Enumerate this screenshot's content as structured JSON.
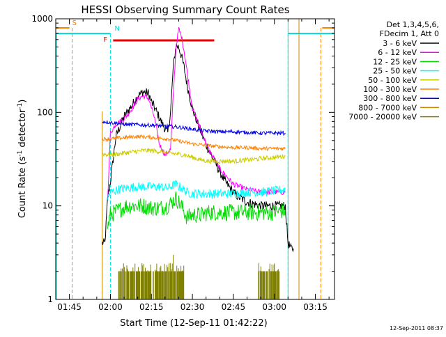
{
  "chart_data": {
    "type": "line",
    "title": "HESSI Observing Summary Count Rates",
    "xlabel": "Start Time (12-Sep-11 01:42:22)",
    "ylabel": "Count Rate (s",
    "ylabel_sup1": "-1",
    "ylabel_mid": " detector",
    "ylabel_sup2": "-1",
    "ylabel_end": ")",
    "yscale": "log",
    "xlim": [
      "01:40",
      "03:22"
    ],
    "ylim": [
      1,
      1000
    ],
    "x_ticks": [
      "01:45",
      "02:00",
      "02:15",
      "02:30",
      "02:45",
      "03:00",
      "03:15"
    ],
    "y_ticks": [
      "1",
      "10",
      "100",
      "1000"
    ],
    "footer_timestamp": "12-Sep-2011 08:37",
    "legend": {
      "header": [
        "Det 1,3,4,5,6,",
        "FDecim 1, Att 0"
      ],
      "placement": "right"
    },
    "flags": [
      {
        "label": "S",
        "color": "#ff8000",
        "bar": [
          "01:40",
          "01:45"
        ],
        "edges": [
          "01:46",
          "03:17"
        ]
      },
      {
        "label": "N",
        "color": "#00e0e0",
        "bar": [
          "01:40",
          "02:00"
        ],
        "edges": [
          "02:00",
          "03:05"
        ]
      },
      {
        "label": "F",
        "color": "#ee0000",
        "bar": [
          "02:01",
          "02:38"
        ],
        "edges": []
      }
    ],
    "series": [
      {
        "name": "3 - 6 keV",
        "color": "#000000",
        "x": [
          "01:57",
          "01:58",
          "01:59",
          "02:00",
          "02:02",
          "02:05",
          "02:08",
          "02:10",
          "02:12",
          "02:14",
          "02:15",
          "02:17",
          "02:19",
          "02:21",
          "02:22",
          "02:23",
          "02:24",
          "02:25",
          "02:26",
          "02:27",
          "02:28",
          "02:30",
          "02:32",
          "02:35",
          "02:38",
          "02:42",
          "02:46",
          "02:50",
          "02:55",
          "03:00",
          "03:04",
          "03:05",
          "03:06",
          "03:07"
        ],
        "y": [
          4,
          4,
          12,
          18,
          55,
          90,
          120,
          150,
          165,
          160,
          130,
          100,
          75,
          60,
          100,
          300,
          520,
          500,
          400,
          300,
          200,
          110,
          75,
          45,
          30,
          18,
          13,
          11,
          10,
          10,
          10,
          4,
          3.5,
          3.5
        ]
      },
      {
        "name": "6 - 12 keV",
        "color": "#ff00ff",
        "x": [
          "01:59",
          "02:00",
          "02:02",
          "02:05",
          "02:08",
          "02:10",
          "02:12",
          "02:14",
          "02:16",
          "02:18",
          "02:20",
          "02:22",
          "02:23",
          "02:24",
          "02:25",
          "02:26",
          "02:27",
          "02:28",
          "02:30",
          "02:33",
          "02:36",
          "02:40",
          "02:45",
          "02:50",
          "02:55",
          "03:00",
          "03:04"
        ],
        "y": [
          12,
          60,
          75,
          85,
          110,
          140,
          150,
          140,
          90,
          45,
          35,
          40,
          150,
          500,
          780,
          650,
          450,
          280,
          110,
          65,
          40,
          25,
          17,
          15,
          14,
          14,
          14
        ]
      },
      {
        "name": "12 - 25 keV",
        "color": "#00dd00",
        "x": [
          "01:59",
          "02:00",
          "02:03",
          "02:06",
          "02:09",
          "02:12",
          "02:15",
          "02:18",
          "02:21",
          "02:24",
          "02:26",
          "02:28",
          "02:30",
          "02:33",
          "02:36",
          "02:40",
          "02:45",
          "02:50",
          "02:55",
          "03:00",
          "03:04"
        ],
        "y": [
          6,
          8,
          9,
          10,
          10,
          10,
          9.5,
          9.5,
          10,
          12,
          10,
          7.5,
          8,
          8,
          8.5,
          8.5,
          8.5,
          8.5,
          8.5,
          8.5,
          9
        ]
      },
      {
        "name": "25 - 50 keV",
        "color": "#00ffff",
        "x": [
          "01:59",
          "02:00",
          "02:03",
          "02:06",
          "02:09",
          "02:12",
          "02:15",
          "02:18",
          "02:21",
          "02:24",
          "02:26",
          "02:28",
          "02:30",
          "02:33",
          "02:36",
          "02:40",
          "02:45",
          "02:50",
          "02:55",
          "03:00",
          "03:04"
        ],
        "y": [
          12,
          14,
          15,
          15.5,
          16,
          16,
          16,
          16,
          15.5,
          17,
          15.5,
          14,
          13.5,
          13.5,
          13.5,
          13.5,
          13.5,
          14,
          14,
          14.5,
          15
        ]
      },
      {
        "name": "50 - 100 keV",
        "color": "#cccc00",
        "x": [
          "01:57",
          "02:00",
          "02:03",
          "02:06",
          "02:09",
          "02:12",
          "02:15",
          "02:18",
          "02:21",
          "02:24",
          "02:27",
          "02:30",
          "02:33",
          "02:36",
          "02:40",
          "02:45",
          "02:50",
          "02:55",
          "03:00",
          "03:04"
        ],
        "y": [
          36,
          35,
          36,
          37,
          38,
          39,
          39,
          38,
          37,
          36,
          35,
          33,
          31,
          30,
          30,
          30,
          31,
          32,
          33,
          34
        ]
      },
      {
        "name": "100 - 300 keV",
        "color": "#ff8000",
        "x": [
          "01:57",
          "02:00",
          "02:03",
          "02:06",
          "02:09",
          "02:12",
          "02:15",
          "02:18",
          "02:21",
          "02:24",
          "02:27",
          "02:30",
          "02:33",
          "02:36",
          "02:40",
          "02:45",
          "02:50",
          "02:55",
          "03:00",
          "03:04"
        ],
        "y": [
          52,
          52,
          53,
          54,
          55,
          55,
          54,
          53,
          52,
          50,
          48,
          46,
          45,
          44,
          43,
          42,
          42,
          41,
          41,
          41
        ]
      },
      {
        "name": "300 - 800 keV",
        "color": "#0000ee",
        "x": [
          "01:57",
          "02:00",
          "02:03",
          "02:06",
          "02:09",
          "02:12",
          "02:15",
          "02:18",
          "02:21",
          "02:24",
          "02:27",
          "02:30",
          "02:33",
          "02:36",
          "02:40",
          "02:45",
          "02:50",
          "02:55",
          "03:00",
          "03:04"
        ],
        "y": [
          80,
          78,
          76,
          74,
          74,
          73,
          73,
          72,
          71,
          70,
          68,
          66,
          64,
          63,
          62,
          62,
          61,
          60,
          60,
          60
        ]
      },
      {
        "name": "800 - 7000 keV",
        "color": "#cc8800",
        "x": [],
        "y": []
      },
      {
        "name": "7000 - 20000 keV",
        "color": "#808000",
        "x": [
          "02:03",
          "02:06",
          "02:09",
          "02:12",
          "02:15",
          "02:18",
          "02:21",
          "02:24",
          "02:27",
          "02:54",
          "02:57",
          "03:00",
          "03:02"
        ],
        "y": [
          2,
          2,
          2,
          2,
          2,
          2,
          2,
          2,
          2,
          2,
          2,
          2,
          2
        ]
      }
    ]
  }
}
